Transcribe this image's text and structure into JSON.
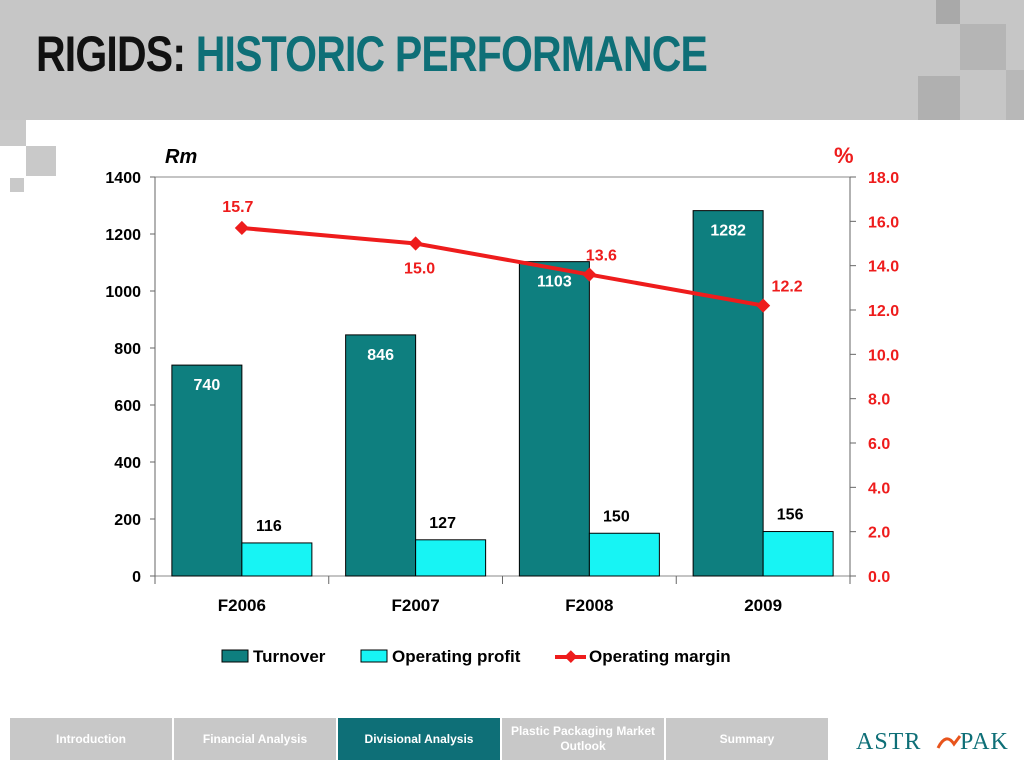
{
  "header": {
    "title_part1": "RIGIDS:",
    "title_part2": "HISTORIC PERFORMANCE"
  },
  "colors": {
    "turnover": "#0e7f7f",
    "operating_profit": "#17f4f4",
    "operating_margin": "#ee1c1c",
    "accent": "#0e6f77"
  },
  "chart_data": {
    "type": "bar",
    "categories": [
      "F2006",
      "F2007",
      "F2008",
      "2009"
    ],
    "left_axis": {
      "label": "Rm",
      "range": [
        0,
        1400
      ],
      "ticks": [
        "0",
        "200",
        "400",
        "600",
        "800",
        "1000",
        "1200",
        "1400"
      ]
    },
    "right_axis": {
      "label": "%",
      "range": [
        0,
        18
      ],
      "ticks": [
        "0.0",
        "2.0",
        "4.0",
        "6.0",
        "8.0",
        "10.0",
        "12.0",
        "14.0",
        "16.0",
        "18.0"
      ]
    },
    "series": [
      {
        "name": "Turnover",
        "type": "bar",
        "axis": "left",
        "values": [
          740,
          846,
          1103,
          1282
        ],
        "labels": [
          "740",
          "846",
          "1103",
          "1282"
        ]
      },
      {
        "name": "Operating profit",
        "type": "bar",
        "axis": "left",
        "values": [
          116,
          127,
          150,
          156
        ],
        "labels": [
          "116",
          "127",
          "150",
          "156"
        ]
      },
      {
        "name": "Operating margin",
        "type": "line",
        "axis": "right",
        "values": [
          15.7,
          15.0,
          13.6,
          12.2
        ],
        "labels": [
          "15.7",
          "15.0",
          "13.6",
          "12.2"
        ]
      }
    ],
    "legend": {
      "position": "bottom"
    },
    "grid": false
  },
  "nav": {
    "items": [
      {
        "label": "Introduction",
        "active": false
      },
      {
        "label": "Financial Analysis",
        "active": false
      },
      {
        "label": "Divisional Analysis",
        "active": true
      },
      {
        "label": "Plastic Packaging Market Outlook",
        "active": false
      },
      {
        "label": "Summary",
        "active": false
      }
    ]
  },
  "logo": {
    "text_a": "ASTR",
    "text_b": "PAK"
  }
}
